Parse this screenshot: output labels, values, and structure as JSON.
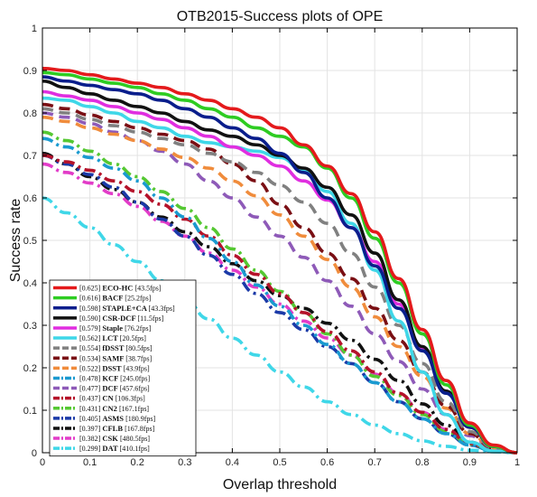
{
  "chart_data": {
    "type": "line",
    "title": "OTB2015-Success plots of OPE",
    "xlabel": "Overlap threshold",
    "ylabel": "Success rate",
    "xlim": [
      0,
      1
    ],
    "ylim": [
      0,
      1
    ],
    "xticks": [
      0,
      0.1,
      0.2,
      0.3,
      0.4,
      0.5,
      0.6,
      0.7,
      0.8,
      0.9,
      1
    ],
    "xtick_labels": [
      "0",
      "0.1",
      "0.2",
      "0.3",
      "0.4",
      "0.5",
      "0.6",
      "0.7",
      "0.8",
      "0.9",
      "1"
    ],
    "yticks": [
      0,
      0.1,
      0.2,
      0.3,
      0.4,
      0.5,
      0.6,
      0.7,
      0.8,
      0.9,
      1
    ],
    "ytick_labels": [
      "0",
      "0.1",
      "0.2",
      "0.3",
      "0.4",
      "0.5",
      "0.6",
      "0.7",
      "0.8",
      "0.9",
      "1"
    ],
    "grid": true,
    "legend_position": "bottom-left",
    "x": [
      0,
      0.05,
      0.1,
      0.15,
      0.2,
      0.25,
      0.3,
      0.35,
      0.4,
      0.45,
      0.5,
      0.55,
      0.6,
      0.65,
      0.7,
      0.75,
      0.8,
      0.85,
      0.9,
      0.95,
      1
    ],
    "series": [
      {
        "name": "ECO-HC",
        "score": "[0.625]",
        "speed": "[43.5fps]",
        "color": "#e41a1c",
        "dash": "solid",
        "values": [
          0.905,
          0.9,
          0.89,
          0.88,
          0.87,
          0.86,
          0.845,
          0.83,
          0.81,
          0.79,
          0.765,
          0.725,
          0.675,
          0.61,
          0.52,
          0.41,
          0.29,
          0.17,
          0.07,
          0.018,
          0
        ]
      },
      {
        "name": "BACF",
        "score": "[0.616]",
        "speed": "[25.2fps]",
        "color": "#2ecc22",
        "dash": "solid",
        "values": [
          0.895,
          0.89,
          0.88,
          0.87,
          0.86,
          0.845,
          0.83,
          0.81,
          0.79,
          0.765,
          0.745,
          0.72,
          0.67,
          0.6,
          0.505,
          0.4,
          0.28,
          0.16,
          0.065,
          0.015,
          0
        ]
      },
      {
        "name": "STAPLE+CA",
        "score": "[0.598]",
        "speed": "[43.3fps]",
        "color": "#0a1e8c",
        "dash": "solid",
        "values": [
          0.885,
          0.875,
          0.865,
          0.855,
          0.845,
          0.83,
          0.81,
          0.79,
          0.765,
          0.74,
          0.705,
          0.66,
          0.6,
          0.53,
          0.44,
          0.34,
          0.24,
          0.14,
          0.06,
          0.015,
          0
        ]
      },
      {
        "name": "CSR-DCF",
        "score": "[0.590]",
        "speed": "[11.5fps]",
        "color": "#111111",
        "dash": "solid",
        "values": [
          0.875,
          0.86,
          0.845,
          0.83,
          0.815,
          0.8,
          0.78,
          0.76,
          0.745,
          0.725,
          0.7,
          0.67,
          0.625,
          0.56,
          0.47,
          0.36,
          0.25,
          0.145,
          0.06,
          0.015,
          0
        ]
      },
      {
        "name": "Staple",
        "score": "[0.579]",
        "speed": "[76.2fps]",
        "color": "#e02ee0",
        "dash": "solid",
        "values": [
          0.85,
          0.84,
          0.83,
          0.815,
          0.8,
          0.785,
          0.765,
          0.745,
          0.72,
          0.7,
          0.675,
          0.64,
          0.595,
          0.53,
          0.45,
          0.35,
          0.245,
          0.145,
          0.06,
          0.015,
          0
        ]
      },
      {
        "name": "LCT",
        "score": "[0.562]",
        "speed": "[20.5fps]",
        "color": "#3fd7e8",
        "dash": "solid",
        "values": [
          0.835,
          0.83,
          0.815,
          0.8,
          0.78,
          0.765,
          0.745,
          0.73,
          0.72,
          0.71,
          0.695,
          0.665,
          0.615,
          0.54,
          0.43,
          0.31,
          0.19,
          0.09,
          0.025,
          0.004,
          0
        ]
      },
      {
        "name": "fDSST",
        "score": "[0.554]",
        "speed": "[80.5fps]",
        "color": "#808080",
        "dash": "dashed",
        "values": [
          0.81,
          0.8,
          0.785,
          0.77,
          0.755,
          0.74,
          0.725,
          0.705,
          0.685,
          0.66,
          0.63,
          0.59,
          0.54,
          0.47,
          0.39,
          0.3,
          0.21,
          0.12,
          0.05,
          0.012,
          0
        ]
      },
      {
        "name": "SAMF",
        "score": "[0.534]",
        "speed": "[38.7fps]",
        "color": "#7a0f14",
        "dash": "dashed",
        "values": [
          0.82,
          0.81,
          0.795,
          0.78,
          0.765,
          0.75,
          0.735,
          0.715,
          0.68,
          0.64,
          0.585,
          0.53,
          0.47,
          0.41,
          0.34,
          0.265,
          0.19,
          0.11,
          0.045,
          0.01,
          0
        ]
      },
      {
        "name": "DSST",
        "score": "[0.522]",
        "speed": "[43.9fps]",
        "color": "#f08c3c",
        "dash": "dashed",
        "values": [
          0.79,
          0.78,
          0.765,
          0.75,
          0.735,
          0.715,
          0.695,
          0.67,
          0.64,
          0.605,
          0.56,
          0.51,
          0.455,
          0.39,
          0.32,
          0.25,
          0.18,
          0.105,
          0.045,
          0.01,
          0
        ]
      },
      {
        "name": "KCF",
        "score": "[0.478]",
        "speed": "[245.0fps]",
        "color": "#1a9ad0",
        "dash": "dashdot",
        "values": [
          0.74,
          0.72,
          0.695,
          0.67,
          0.64,
          0.6,
          0.555,
          0.505,
          0.45,
          0.395,
          0.345,
          0.3,
          0.255,
          0.21,
          0.165,
          0.12,
          0.08,
          0.045,
          0.018,
          0.004,
          0
        ]
      },
      {
        "name": "DCF",
        "score": "[0.477]",
        "speed": "[457.6fps]",
        "color": "#8e5ab8",
        "dash": "dashed",
        "values": [
          0.8,
          0.79,
          0.775,
          0.755,
          0.735,
          0.71,
          0.68,
          0.64,
          0.6,
          0.555,
          0.51,
          0.46,
          0.405,
          0.345,
          0.28,
          0.215,
          0.15,
          0.09,
          0.04,
          0.01,
          0
        ]
      },
      {
        "name": "CN",
        "score": "[0.437]",
        "speed": "[106.3fps]",
        "color": "#b5122a",
        "dash": "dashdot",
        "values": [
          0.7,
          0.685,
          0.665,
          0.64,
          0.615,
          0.585,
          0.55,
          0.51,
          0.465,
          0.42,
          0.375,
          0.33,
          0.285,
          0.24,
          0.19,
          0.14,
          0.095,
          0.055,
          0.022,
          0.005,
          0
        ]
      },
      {
        "name": "CN2",
        "score": "[0.431]",
        "speed": "[167.1fps]",
        "color": "#55c832",
        "dash": "dashdot",
        "values": [
          0.755,
          0.735,
          0.71,
          0.68,
          0.65,
          0.615,
          0.575,
          0.53,
          0.48,
          0.43,
          0.38,
          0.33,
          0.28,
          0.23,
          0.18,
          0.135,
          0.09,
          0.05,
          0.02,
          0.005,
          0
        ]
      },
      {
        "name": "ASMS",
        "score": "[0.405]",
        "speed": "[180.9fps]",
        "color": "#1b3aa8",
        "dash": "dashdot",
        "values": [
          0.7,
          0.68,
          0.655,
          0.625,
          0.59,
          0.55,
          0.51,
          0.465,
          0.42,
          0.375,
          0.33,
          0.29,
          0.25,
          0.21,
          0.165,
          0.12,
          0.08,
          0.045,
          0.018,
          0.004,
          0
        ]
      },
      {
        "name": "CFLB",
        "score": "[0.397]",
        "speed": "[167.8fps]",
        "color": "#111111",
        "dash": "dashdot",
        "values": [
          0.705,
          0.68,
          0.65,
          0.62,
          0.59,
          0.555,
          0.52,
          0.485,
          0.445,
          0.405,
          0.37,
          0.34,
          0.305,
          0.265,
          0.22,
          0.17,
          0.115,
          0.065,
          0.025,
          0.005,
          0
        ]
      },
      {
        "name": "CSK",
        "score": "[0.382]",
        "speed": "[480.5fps]",
        "color": "#e23cc8",
        "dash": "dashdot",
        "values": [
          0.68,
          0.66,
          0.635,
          0.61,
          0.58,
          0.545,
          0.51,
          0.47,
          0.43,
          0.39,
          0.35,
          0.31,
          0.27,
          0.23,
          0.185,
          0.14,
          0.095,
          0.055,
          0.022,
          0.005,
          0
        ]
      },
      {
        "name": "DAT",
        "score": "[0.299]",
        "speed": "[410.1fps]",
        "color": "#3fd7e8",
        "dash": "dashdot",
        "values": [
          0.6,
          0.565,
          0.53,
          0.49,
          0.45,
          0.405,
          0.36,
          0.315,
          0.27,
          0.23,
          0.19,
          0.155,
          0.12,
          0.09,
          0.065,
          0.045,
          0.028,
          0.015,
          0.006,
          0.002,
          0
        ]
      }
    ]
  }
}
